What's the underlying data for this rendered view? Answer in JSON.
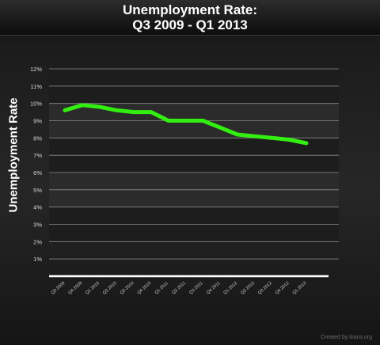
{
  "header": {
    "title_line1": "Unemployment Rate:",
    "title_line2": "Q3 2009 - Q1 2013"
  },
  "credit": "Created by loans.org",
  "colors": {
    "line": "#33ee11",
    "axis": "#ffffff",
    "grid": "#8a8a8a",
    "band_dark": "#1d1d1d",
    "band_light": "#2b2b2b"
  },
  "chart_data": {
    "type": "line",
    "title": "Unemployment Rate: Q3 2009 - Q1 2013",
    "xlabel": "",
    "ylabel": "Unemployment Rate",
    "ylim": [
      0,
      12
    ],
    "y_ticks": [
      "1%",
      "2%",
      "3%",
      "4%",
      "5%",
      "6%",
      "7%",
      "8%",
      "9%",
      "10%",
      "11%",
      "12%"
    ],
    "grid": true,
    "legend": "none",
    "categories": [
      "Q3 2009",
      "Q4 2009",
      "Q1 2010",
      "Q2 2010",
      "Q3 2010",
      "Q4 2010",
      "Q1 2011",
      "Q2 2011",
      "Q3 2011",
      "Q4 2011",
      "Q1 2012",
      "Q2 2012",
      "Q3 2012",
      "Q4 2012",
      "Q1 2013"
    ],
    "series": [
      {
        "values": [
          9.6,
          9.9,
          9.8,
          9.6,
          9.5,
          9.5,
          9.0,
          9.0,
          9.0,
          8.6,
          8.2,
          8.1,
          8.0,
          7.9,
          7.7
        ]
      }
    ]
  }
}
